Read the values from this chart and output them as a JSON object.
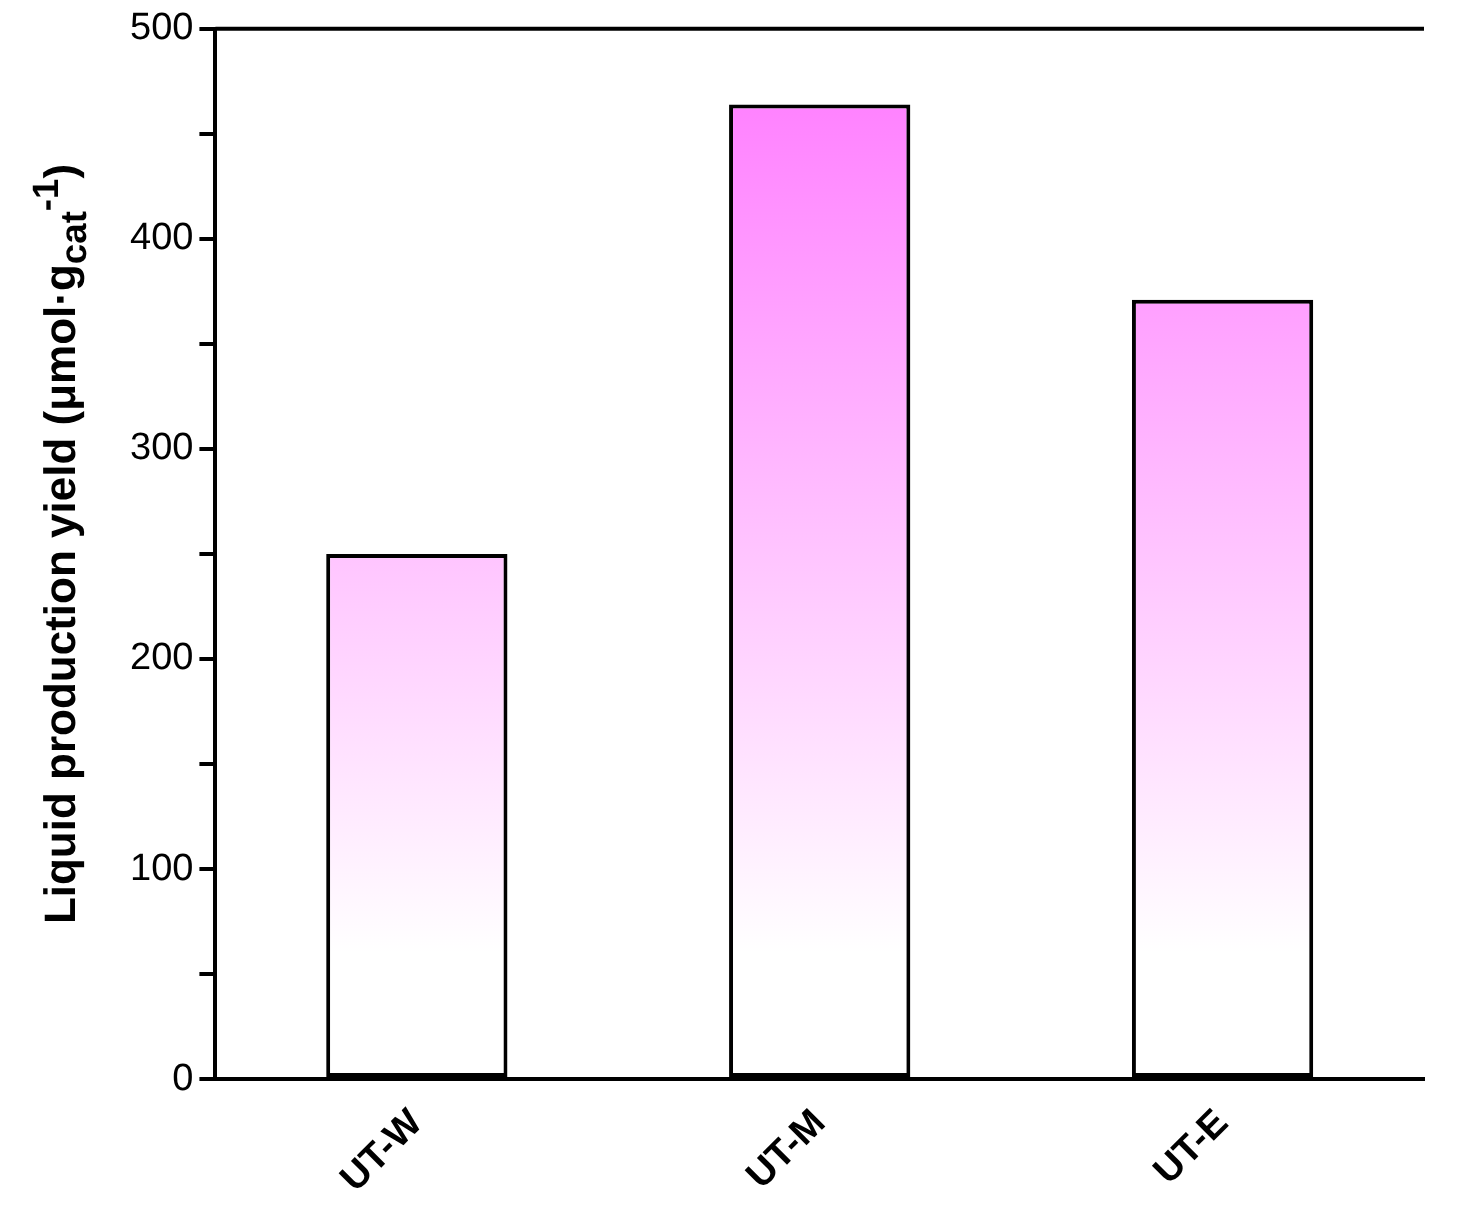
{
  "chart_data": {
    "type": "bar",
    "ylabel": "Liquid production yield (μmol·g$_{cat}$$^{-1}$)",
    "categories": [
      "UT-W",
      "UT-M",
      "UT-E"
    ],
    "series": [
      {
        "color": "#ff7fff",
        "values": [
          250,
          464,
          371
        ]
      }
    ],
    "ylim": [
      0,
      500
    ],
    "yticks": [
      0,
      {
        "value": 50,
        "label": null
      },
      100,
      {
        "value": 150,
        "label": null
      },
      200,
      {
        "value": 250,
        "label": null
      },
      300,
      {
        "value": 350,
        "label": null
      },
      400,
      {
        "value": 450,
        "label": null
      },
      500
    ],
    "grid": false,
    "legend": false
  }
}
